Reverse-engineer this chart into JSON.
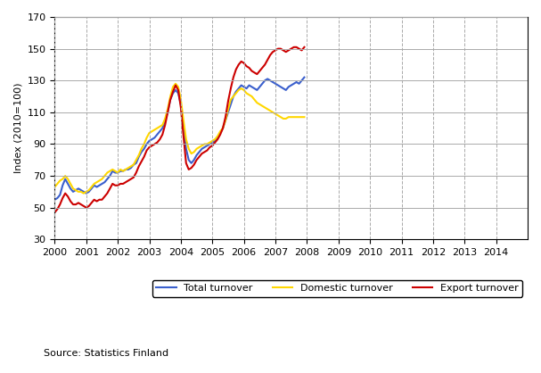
{
  "title": "",
  "ylabel": "Index (2010=100)",
  "xlabel": "",
  "ylim": [
    30,
    170
  ],
  "yticks": [
    30,
    50,
    70,
    90,
    110,
    130,
    150,
    170
  ],
  "source_text": "Source: Statistics Finland",
  "legend_labels": [
    "Total turnover",
    "Domestic turnover",
    "Export turnover"
  ],
  "line_colors": [
    "#3a5fcd",
    "#ffd700",
    "#cc0000"
  ],
  "background_color": "#ffffff",
  "grid_color": "#aaaaaa",
  "total_turnover": [
    55,
    56,
    58,
    64,
    68,
    65,
    62,
    60,
    61,
    62,
    61,
    60,
    59,
    60,
    62,
    64,
    63,
    64,
    65,
    66,
    68,
    70,
    73,
    72,
    72,
    73,
    73,
    74,
    74,
    75,
    77,
    78,
    82,
    85,
    87,
    90,
    92,
    93,
    94,
    96,
    98,
    100,
    105,
    110,
    118,
    122,
    124,
    122,
    115,
    100,
    87,
    80,
    78,
    80,
    83,
    85,
    87,
    88,
    89,
    90,
    91,
    92,
    94,
    97,
    100,
    105,
    110,
    115,
    120,
    123,
    125,
    127,
    126,
    125,
    127,
    126,
    125,
    124,
    126,
    128,
    130,
    131,
    130,
    129,
    128,
    127,
    126,
    125,
    124,
    126,
    127,
    128,
    129,
    128,
    130,
    132
  ],
  "domestic_turnover": [
    63,
    65,
    67,
    68,
    70,
    68,
    65,
    62,
    61,
    60,
    60,
    59,
    60,
    61,
    63,
    65,
    66,
    67,
    68,
    70,
    72,
    73,
    74,
    73,
    72,
    74,
    73,
    74,
    75,
    76,
    77,
    80,
    83,
    87,
    90,
    94,
    97,
    98,
    99,
    100,
    101,
    102,
    106,
    112,
    120,
    126,
    128,
    126,
    118,
    105,
    93,
    87,
    84,
    85,
    87,
    88,
    89,
    90,
    90,
    91,
    92,
    93,
    95,
    98,
    100,
    105,
    112,
    118,
    120,
    122,
    124,
    125,
    124,
    122,
    121,
    120,
    118,
    116,
    115,
    114,
    113,
    112,
    111,
    110,
    109,
    108,
    107,
    106,
    106,
    107,
    107,
    107,
    107,
    107,
    107,
    107
  ],
  "export_turnover": [
    47,
    49,
    52,
    56,
    59,
    57,
    54,
    52,
    52,
    53,
    52,
    51,
    50,
    51,
    53,
    55,
    54,
    55,
    55,
    57,
    59,
    62,
    65,
    64,
    64,
    65,
    65,
    66,
    67,
    68,
    69,
    72,
    76,
    79,
    82,
    86,
    88,
    89,
    90,
    91,
    93,
    96,
    102,
    110,
    118,
    123,
    127,
    124,
    113,
    95,
    78,
    74,
    75,
    77,
    80,
    82,
    84,
    85,
    86,
    88,
    89,
    91,
    93,
    96,
    100,
    107,
    117,
    125,
    132,
    137,
    140,
    142,
    141,
    139,
    138,
    136,
    135,
    134,
    136,
    138,
    140,
    143,
    146,
    148,
    149,
    150,
    150,
    149,
    148,
    149,
    150,
    151,
    151,
    150,
    149,
    151
  ],
  "x_start_year": 2000,
  "x_end_year": 2014,
  "months_per_year": 12,
  "num_points": 96
}
